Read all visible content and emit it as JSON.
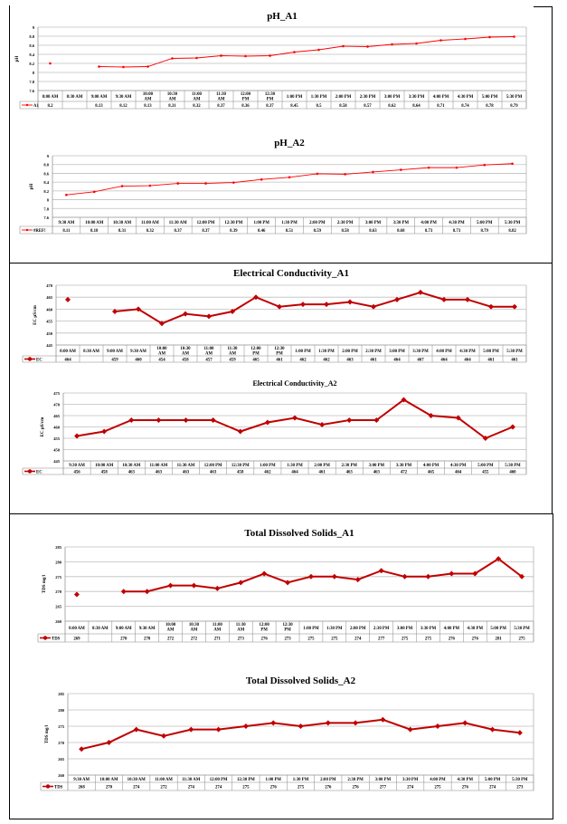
{
  "chart_data": [
    {
      "type": "line",
      "title": "pH_A1",
      "ylabel": "pH",
      "ylim": [
        7.6,
        9
      ],
      "yticks": [
        7.6,
        7.8,
        8,
        8.2,
        8.4,
        8.6,
        8.8,
        9
      ],
      "grid": true,
      "legend": "table-left",
      "categories": [
        "8:00 AM",
        "8:30 AM",
        "9:00 AM",
        "9:30 AM",
        "10:00 AM",
        "10:30 AM",
        "11:00 AM",
        "11:30 AM",
        "12:00 PM",
        "12:30 PM",
        "1:00 PM",
        "1:30 PM",
        "2:00 PM",
        "2:30 PM",
        "3:00 PM",
        "3:30 PM",
        "4:00 PM",
        "4:30 PM",
        "5:00 PM",
        "5:30 PM"
      ],
      "series": [
        {
          "name": "A1",
          "color": "#ff0000",
          "values": [
            8.2,
            null,
            8.13,
            8.12,
            8.13,
            8.31,
            8.32,
            8.37,
            8.36,
            8.37,
            8.45,
            8.5,
            8.58,
            8.57,
            8.62,
            8.64,
            8.71,
            8.74,
            8.78,
            8.79
          ]
        }
      ]
    },
    {
      "type": "line",
      "title": "pH_A2",
      "ylabel": "pH",
      "ylim": [
        7.6,
        9
      ],
      "yticks": [
        7.6,
        7.8,
        8,
        8.2,
        8.4,
        8.6,
        8.8,
        9
      ],
      "grid": true,
      "legend": "table-left",
      "categories": [
        "9:30 AM",
        "10:00 AM",
        "10:30 AM",
        "11:00 AM",
        "11:30 AM",
        "12:00 PM",
        "12:30 PM",
        "1:00 PM",
        "1:30 PM",
        "2:00 PM",
        "2:30 PM",
        "3:00 PM",
        "3:30 PM",
        "4:00 PM",
        "4:30 PM",
        "5:00 PM",
        "5:30 PM"
      ],
      "series": [
        {
          "name": "#REF!",
          "color": "#ff0000",
          "values": [
            8.11,
            8.18,
            8.31,
            8.32,
            8.37,
            8.37,
            8.39,
            8.46,
            8.51,
            8.59,
            8.58,
            8.63,
            8.68,
            8.73,
            8.73,
            8.79,
            8.82
          ]
        }
      ]
    },
    {
      "type": "line",
      "title": "Electrical Conductivity_A1",
      "ylabel": "EC µS/cm",
      "ylim": [
        445,
        470
      ],
      "yticks": [
        445,
        450,
        455,
        460,
        465,
        470
      ],
      "grid": true,
      "legend": "table-left",
      "categories": [
        "8:00 AM",
        "8:30 AM",
        "9:00 AM",
        "9:30 AM",
        "10:00 AM",
        "10:30 AM",
        "11:00 AM",
        "11:30 AM",
        "12:00 PM",
        "12:30 PM",
        "1:00 PM",
        "1:30 PM",
        "2:00 PM",
        "2:30 PM",
        "3:00 PM",
        "3:30 PM",
        "4:00 PM",
        "4:30 PM",
        "5:00 PM",
        "5:30 PM"
      ],
      "series": [
        {
          "name": "EC",
          "color": "#c00000",
          "values": [
            464,
            null,
            459,
            460,
            454,
            458,
            457,
            459,
            465,
            461,
            462,
            462,
            463,
            461,
            464,
            467,
            464,
            464,
            461,
            461
          ]
        }
      ]
    },
    {
      "type": "line",
      "title": "Electrical Conductivity_A2",
      "ylabel": "EC µS/cm",
      "ylim": [
        445,
        475
      ],
      "yticks": [
        445,
        450,
        455,
        460,
        465,
        470,
        475
      ],
      "grid": true,
      "legend": "table-left",
      "categories": [
        "9:30 AM",
        "10:00 AM",
        "10:30 AM",
        "11:00 AM",
        "11:30 AM",
        "12:00 PM",
        "12:30 PM",
        "1:00 PM",
        "1:30 PM",
        "2:00 PM",
        "2:30 PM",
        "3:00 PM",
        "3:30 PM",
        "4:00 PM",
        "4:30 PM",
        "5:00 PM",
        "5:30 PM"
      ],
      "series": [
        {
          "name": "EC",
          "color": "#c00000",
          "values": [
            456,
            458,
            463,
            463,
            463,
            463,
            458,
            462,
            464,
            461,
            463,
            463,
            472,
            465,
            464,
            455,
            460
          ]
        }
      ]
    },
    {
      "type": "line",
      "title": "Total Dissolved Solids_A1",
      "ylabel": "TDS mg/l",
      "ylim": [
        260,
        285
      ],
      "yticks": [
        260,
        265,
        270,
        275,
        280,
        285
      ],
      "grid": true,
      "legend": "table-left",
      "categories": [
        "8:00 AM",
        "8:30 AM",
        "9:00 AM",
        "9:30 AM",
        "10:00 AM",
        "10:30 AM",
        "11:00 AM",
        "11:30 AM",
        "12:00 PM",
        "12:30 PM",
        "1:00 PM",
        "1:30 PM",
        "2:00 PM",
        "2:30 PM",
        "3:00 PM",
        "3:30 PM",
        "4:00 PM",
        "4:30 PM",
        "5:00 PM",
        "5:30 PM"
      ],
      "series": [
        {
          "name": "TDS",
          "color": "#c00000",
          "values": [
            269,
            null,
            270,
            270,
            272,
            272,
            271,
            273,
            276,
            273,
            275,
            275,
            274,
            277,
            275,
            275,
            276,
            276,
            281,
            275
          ]
        }
      ]
    },
    {
      "type": "line",
      "title": "Total Dissolved Solids_A2",
      "ylabel": "TDS mg/l",
      "ylim": [
        260,
        285
      ],
      "yticks": [
        260,
        265,
        270,
        275,
        280,
        285
      ],
      "grid": true,
      "legend": "table-left",
      "categories": [
        "9:30 AM",
        "10:00 AM",
        "10:30 AM",
        "11:00 AM",
        "11:30 AM",
        "12:00 PM",
        "12:30 PM",
        "1:00 PM",
        "1:30 PM",
        "2:00 PM",
        "2:30 PM",
        "3:00 PM",
        "3:30 PM",
        "4:00 PM",
        "4:30 PM",
        "5:00 PM",
        "5:30 PM"
      ],
      "series": [
        {
          "name": "TDS",
          "color": "#c00000",
          "values": [
            268,
            270,
            274,
            272,
            274,
            274,
            275,
            276,
            275,
            276,
            276,
            277,
            274,
            275,
            276,
            274,
            273
          ]
        }
      ]
    }
  ]
}
